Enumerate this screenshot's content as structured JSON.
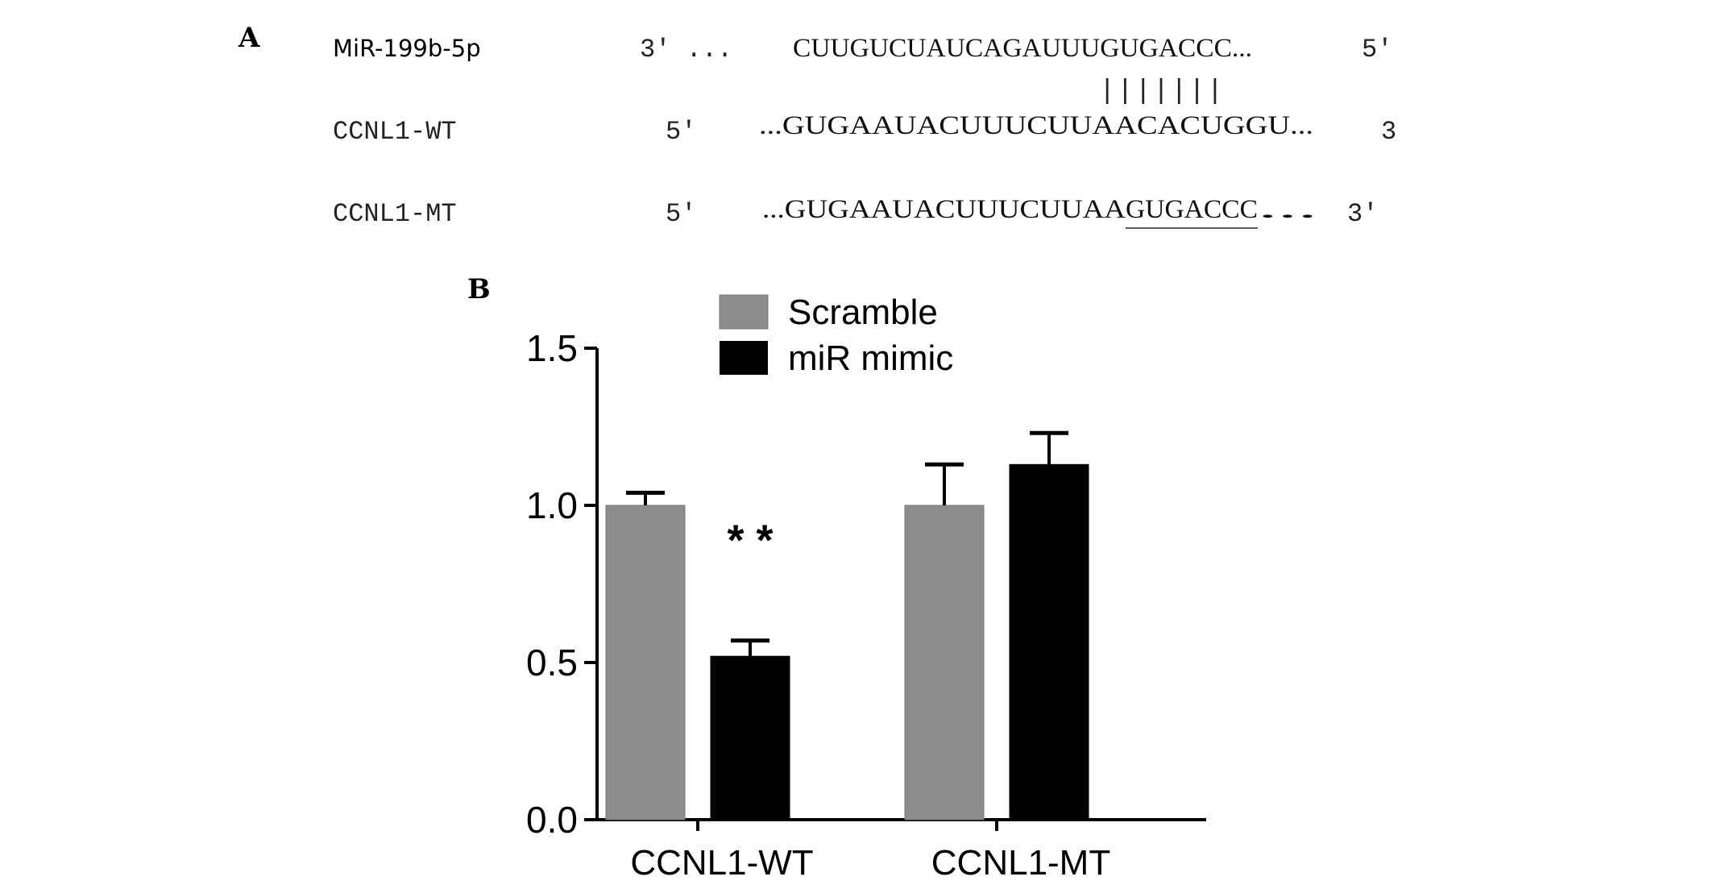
{
  "panel_a": {
    "letter": "A",
    "rows": [
      {
        "label": "MiR-199b-5p",
        "left_end": "3' ...",
        "sequence": "CUUGUCUAUCAGAUUUGUGACCC...",
        "right_end": "5'"
      },
      {
        "label": "CCNL1-WT",
        "left_end": "5'",
        "sequence": "...GUGAAUACUUUCUUAACACUGGU...",
        "right_end": "3"
      },
      {
        "label": "CCNL1-MT",
        "left_end": "5'",
        "sequence_prefix": "...GUGAAUACUUUCUUAA",
        "sequence_underlined": "GUGACCC",
        "sequence_suffix": "...",
        "right_end": "3'"
      }
    ],
    "pairing_marks": "|||||||"
  },
  "panel_b": {
    "letter": "B"
  },
  "chart_data": {
    "type": "bar",
    "categories": [
      "CCNL1-WT",
      "CCNL1-MT"
    ],
    "series": [
      {
        "name": "Scramble",
        "values": [
          1.0,
          1.0
        ],
        "errors": [
          0.04,
          0.13
        ],
        "color": "#8c8c8c"
      },
      {
        "name": "miR mimic",
        "values": [
          0.52,
          1.13
        ],
        "errors": [
          0.05,
          0.1
        ],
        "color": "#000000"
      }
    ],
    "yticks": [
      "0.0",
      "0.5",
      "1.0",
      "1.5"
    ],
    "ylim": [
      0,
      1.5
    ],
    "legend_position": "top",
    "grid": false,
    "annotations": [
      {
        "text": "* *",
        "category": "CCNL1-WT",
        "y": 0.93
      }
    ]
  }
}
